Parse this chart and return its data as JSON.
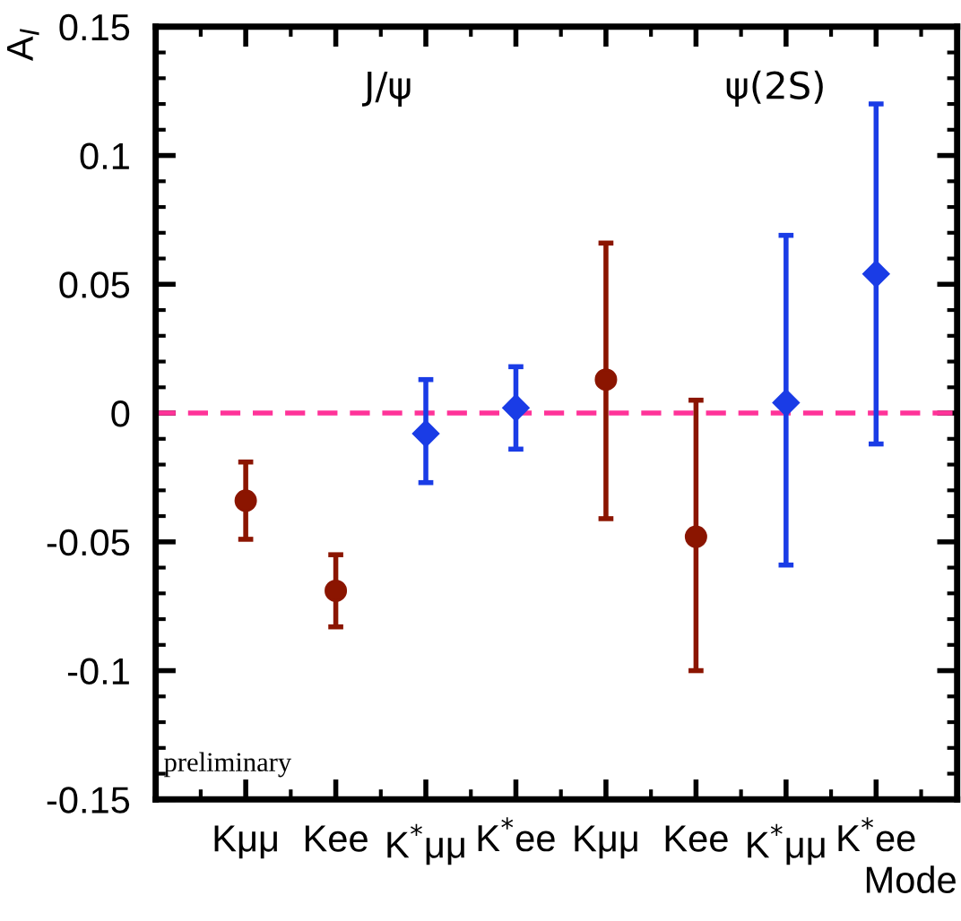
{
  "chart_data": {
    "type": "scatter",
    "xlabel": "Mode",
    "ylabel": "A$_{I}$",
    "categories": [
      "Kμμ",
      "Kee",
      "K$^{*}$μμ",
      "K$^{*}$ee",
      "Kμμ",
      "Kee",
      "K$^{*}$μμ",
      "K$^{*}$ee"
    ],
    "series": [
      {
        "color": "#8b1500",
        "marker": "circle",
        "values": [
          -0.034,
          -0.069,
          null,
          null,
          0.013,
          -0.048,
          null,
          null
        ],
        "errors": [
          [
            -0.049,
            -0.019
          ],
          [
            -0.083,
            -0.055
          ],
          null,
          null,
          [
            -0.041,
            0.066
          ],
          [
            -0.1,
            0.005
          ],
          null,
          null
        ]
      },
      {
        "color": "#1a3ce6",
        "marker": "diamond",
        "values": [
          null,
          null,
          -0.008,
          0.002,
          null,
          null,
          0.004,
          0.054
        ],
        "errors": [
          null,
          null,
          [
            -0.027,
            0.013
          ],
          [
            -0.014,
            0.018
          ],
          null,
          null,
          [
            -0.059,
            0.069
          ],
          [
            -0.012,
            0.12
          ]
        ]
      }
    ],
    "ylim": [
      -0.15,
      0.15
    ],
    "yticks": [
      -0.15,
      -0.1,
      -0.05,
      0,
      0.05,
      0.1,
      0.15
    ],
    "ref_lines": [
      {
        "axis": "y",
        "value": 0,
        "color": "#ff3399",
        "line_style": "dashed"
      }
    ],
    "annotations": [
      "J/ψ",
      "ψ(2S)",
      "preliminary"
    ],
    "grid": false,
    "legend": false
  }
}
